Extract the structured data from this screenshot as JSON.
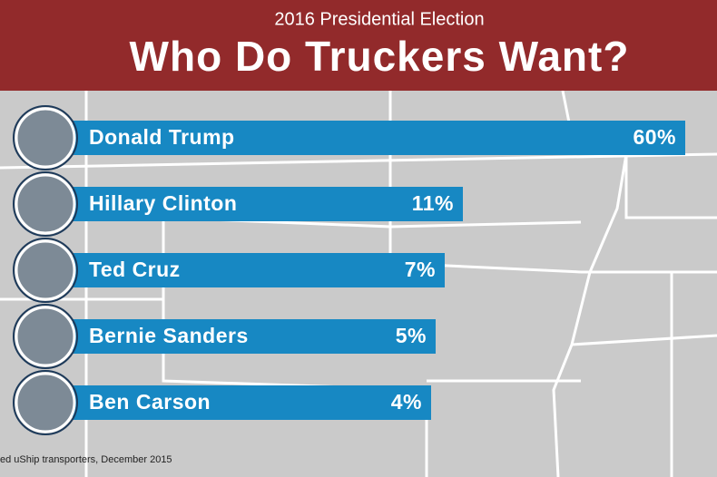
{
  "chart_data": {
    "type": "bar",
    "orientation": "horizontal",
    "subtitle": "2016 Presidential Election",
    "title": "Who Do Truckers Want?",
    "categories": [
      "Donald Trump",
      "Hillary Clinton",
      "Ted Cruz",
      "Bernie Sanders",
      "Ben Carson"
    ],
    "values": [
      60,
      11,
      7,
      5,
      4
    ],
    "value_labels": [
      "60%",
      "11%",
      "7%",
      "5%",
      "4%"
    ],
    "color": "#1788c3",
    "source": "ed uShip transporters, December 2015"
  }
}
